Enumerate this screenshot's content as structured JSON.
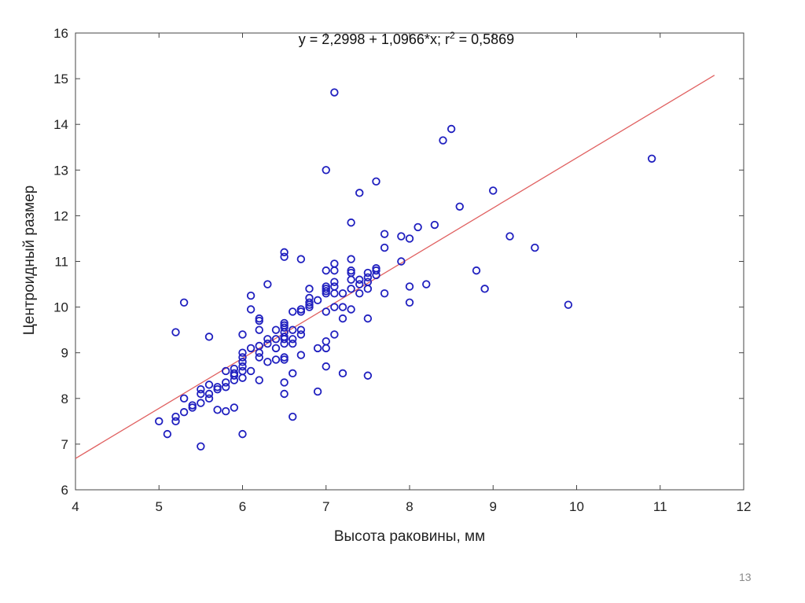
{
  "slide": {
    "page_number": "13"
  },
  "chart_data": {
    "type": "scatter",
    "title": "",
    "equation": {
      "prefix": "y = 2,2998 + 1,0966*x; r",
      "superscript": "2",
      "suffix": " = 0,5869"
    },
    "regression": {
      "intercept": 2.2998,
      "slope": 1.0966,
      "x_range": [
        4,
        11.65
      ]
    },
    "xlabel": "Высота раковины, мм",
    "ylabel": "Центроидный размер",
    "xlim": [
      4,
      12
    ],
    "ylim": [
      6,
      16
    ],
    "xticks": [
      "4",
      "5",
      "6",
      "7",
      "8",
      "9",
      "10",
      "11",
      "12"
    ],
    "yticks": [
      "6",
      "7",
      "8",
      "9",
      "10",
      "11",
      "12",
      "13",
      "14",
      "15",
      "16"
    ],
    "grid": false,
    "colors": {
      "points": "#1f1fbf",
      "fit_line": "#e06060",
      "axes": "#444444"
    },
    "points": [
      [
        5.0,
        7.5
      ],
      [
        5.1,
        7.22
      ],
      [
        5.2,
        7.5
      ],
      [
        5.2,
        7.6
      ],
      [
        5.2,
        9.45
      ],
      [
        5.3,
        7.7
      ],
      [
        5.3,
        8.0
      ],
      [
        5.3,
        10.1
      ],
      [
        5.4,
        7.8
      ],
      [
        5.4,
        7.85
      ],
      [
        5.5,
        6.95
      ],
      [
        5.5,
        7.9
      ],
      [
        5.5,
        8.1
      ],
      [
        5.5,
        8.2
      ],
      [
        5.6,
        8.0
      ],
      [
        5.6,
        8.1
      ],
      [
        5.6,
        8.3
      ],
      [
        5.6,
        9.35
      ],
      [
        5.7,
        7.75
      ],
      [
        5.7,
        8.2
      ],
      [
        5.7,
        8.25
      ],
      [
        5.8,
        7.72
      ],
      [
        5.8,
        8.25
      ],
      [
        5.8,
        8.35
      ],
      [
        5.8,
        8.6
      ],
      [
        5.9,
        7.8
      ],
      [
        5.9,
        8.4
      ],
      [
        5.9,
        8.5
      ],
      [
        5.9,
        8.55
      ],
      [
        5.9,
        8.65
      ],
      [
        6.0,
        7.22
      ],
      [
        6.0,
        8.45
      ],
      [
        6.0,
        8.6
      ],
      [
        6.0,
        8.7
      ],
      [
        6.0,
        8.8
      ],
      [
        6.0,
        8.9
      ],
      [
        6.0,
        9.0
      ],
      [
        6.0,
        9.4
      ],
      [
        6.1,
        8.6
      ],
      [
        6.1,
        9.1
      ],
      [
        6.1,
        9.95
      ],
      [
        6.1,
        10.25
      ],
      [
        6.2,
        8.4
      ],
      [
        6.2,
        8.9
      ],
      [
        6.2,
        9.0
      ],
      [
        6.2,
        9.15
      ],
      [
        6.2,
        9.5
      ],
      [
        6.2,
        9.7
      ],
      [
        6.2,
        9.75
      ],
      [
        6.3,
        8.8
      ],
      [
        6.3,
        9.2
      ],
      [
        6.3,
        9.3
      ],
      [
        6.3,
        10.5
      ],
      [
        6.4,
        8.85
      ],
      [
        6.4,
        9.1
      ],
      [
        6.4,
        9.3
      ],
      [
        6.4,
        9.5
      ],
      [
        6.5,
        8.1
      ],
      [
        6.5,
        8.35
      ],
      [
        6.5,
        8.85
      ],
      [
        6.5,
        8.9
      ],
      [
        6.5,
        9.2
      ],
      [
        6.5,
        9.3
      ],
      [
        6.5,
        9.35
      ],
      [
        6.5,
        9.45
      ],
      [
        6.5,
        9.55
      ],
      [
        6.5,
        9.6
      ],
      [
        6.5,
        9.65
      ],
      [
        6.5,
        11.1
      ],
      [
        6.5,
        11.2
      ],
      [
        6.6,
        7.6
      ],
      [
        6.6,
        8.55
      ],
      [
        6.6,
        9.2
      ],
      [
        6.6,
        9.3
      ],
      [
        6.6,
        9.5
      ],
      [
        6.6,
        9.9
      ],
      [
        6.7,
        8.95
      ],
      [
        6.7,
        9.4
      ],
      [
        6.7,
        9.5
      ],
      [
        6.7,
        9.9
      ],
      [
        6.7,
        9.95
      ],
      [
        6.7,
        11.05
      ],
      [
        6.8,
        10.0
      ],
      [
        6.8,
        10.05
      ],
      [
        6.8,
        10.1
      ],
      [
        6.8,
        10.2
      ],
      [
        6.8,
        10.4
      ],
      [
        6.9,
        8.15
      ],
      [
        6.9,
        9.1
      ],
      [
        6.9,
        10.15
      ],
      [
        7.0,
        8.7
      ],
      [
        7.0,
        9.1
      ],
      [
        7.0,
        9.25
      ],
      [
        7.0,
        9.9
      ],
      [
        7.0,
        10.3
      ],
      [
        7.0,
        10.35
      ],
      [
        7.0,
        10.4
      ],
      [
        7.0,
        10.45
      ],
      [
        7.0,
        10.8
      ],
      [
        7.0,
        13.0
      ],
      [
        7.1,
        9.4
      ],
      [
        7.1,
        10.0
      ],
      [
        7.1,
        10.3
      ],
      [
        7.1,
        10.45
      ],
      [
        7.1,
        10.55
      ],
      [
        7.1,
        10.8
      ],
      [
        7.1,
        10.95
      ],
      [
        7.1,
        14.7
      ],
      [
        7.2,
        8.55
      ],
      [
        7.2,
        9.75
      ],
      [
        7.2,
        10.0
      ],
      [
        7.2,
        10.3
      ],
      [
        7.3,
        9.95
      ],
      [
        7.3,
        10.4
      ],
      [
        7.3,
        10.6
      ],
      [
        7.3,
        10.75
      ],
      [
        7.3,
        10.8
      ],
      [
        7.3,
        11.05
      ],
      [
        7.3,
        11.85
      ],
      [
        7.4,
        10.3
      ],
      [
        7.4,
        10.5
      ],
      [
        7.4,
        10.6
      ],
      [
        7.4,
        12.5
      ],
      [
        7.5,
        8.5
      ],
      [
        7.5,
        9.75
      ],
      [
        7.5,
        10.4
      ],
      [
        7.5,
        10.55
      ],
      [
        7.5,
        10.65
      ],
      [
        7.5,
        10.75
      ],
      [
        7.6,
        10.7
      ],
      [
        7.6,
        10.8
      ],
      [
        7.6,
        10.85
      ],
      [
        7.6,
        12.75
      ],
      [
        7.7,
        10.3
      ],
      [
        7.7,
        11.3
      ],
      [
        7.7,
        11.6
      ],
      [
        7.9,
        11.0
      ],
      [
        7.9,
        11.55
      ],
      [
        8.0,
        10.1
      ],
      [
        8.0,
        10.45
      ],
      [
        8.0,
        11.5
      ],
      [
        8.1,
        11.75
      ],
      [
        8.2,
        10.5
      ],
      [
        8.3,
        11.8
      ],
      [
        8.4,
        13.65
      ],
      [
        8.5,
        13.9
      ],
      [
        8.6,
        12.2
      ],
      [
        8.8,
        10.8
      ],
      [
        8.9,
        10.4
      ],
      [
        9.0,
        12.55
      ],
      [
        9.2,
        11.55
      ],
      [
        9.5,
        11.3
      ],
      [
        9.9,
        10.05
      ],
      [
        10.9,
        13.25
      ]
    ]
  }
}
